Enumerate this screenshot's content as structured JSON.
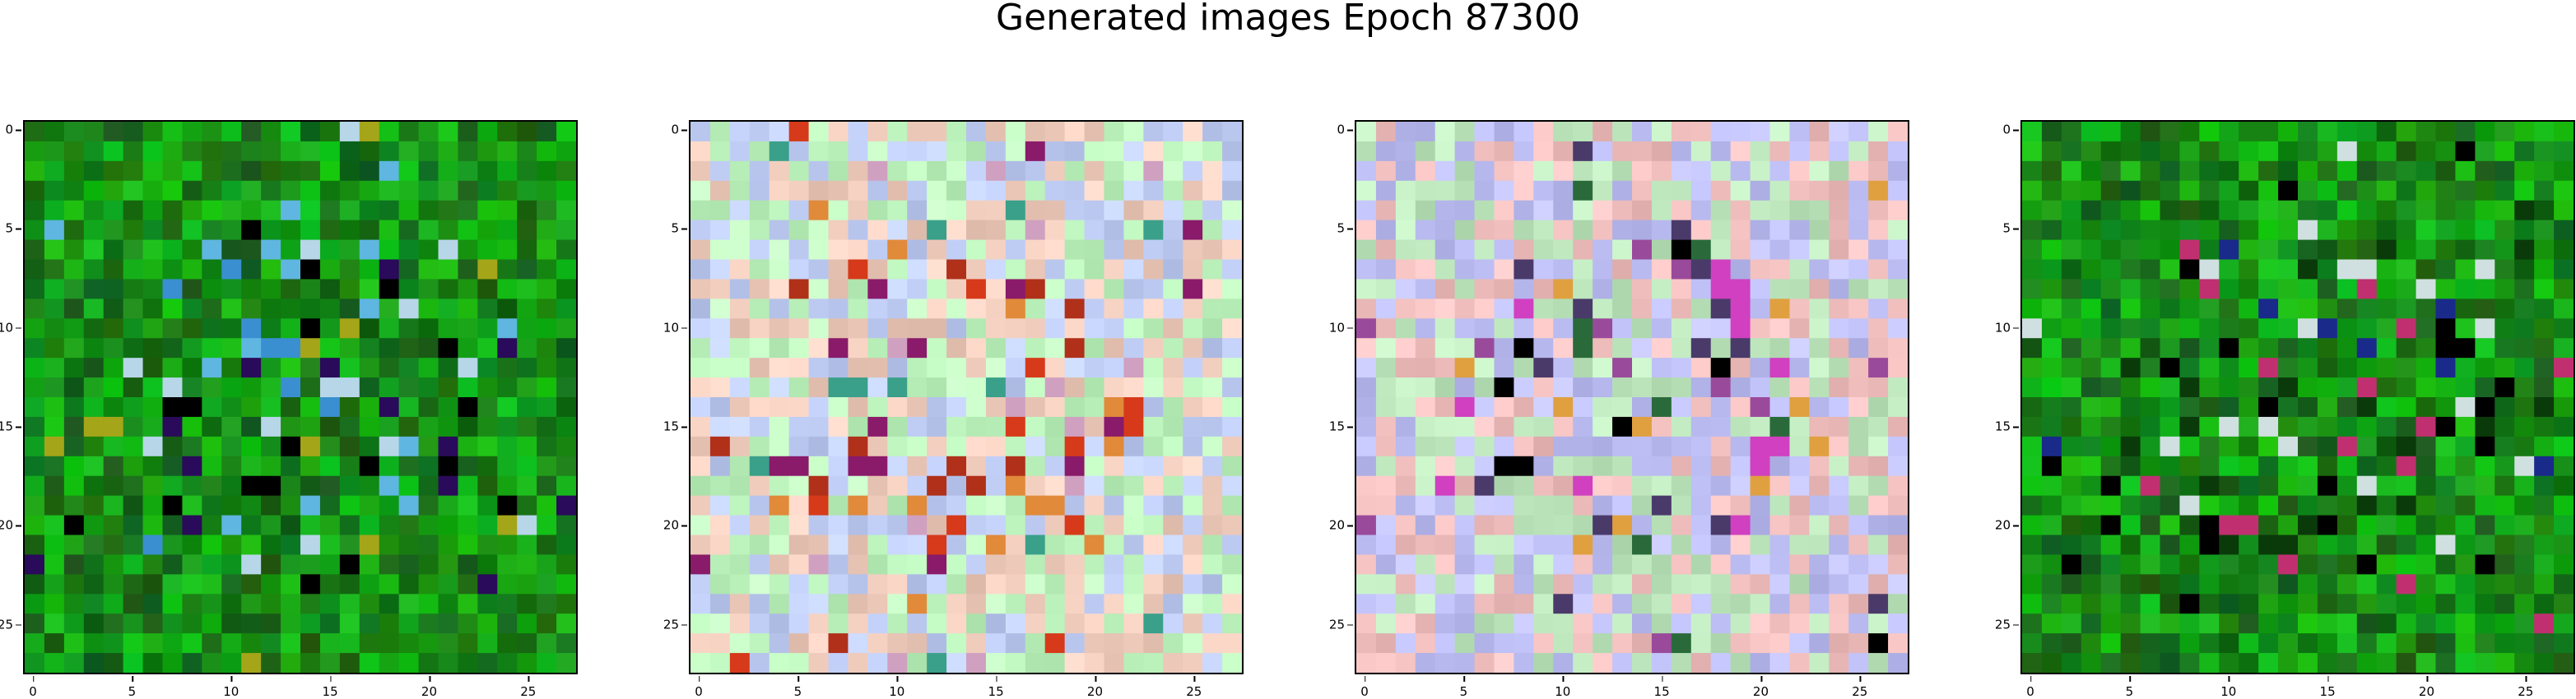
{
  "figure": {
    "title": "Generated images Epoch 87300"
  },
  "axes": {
    "x_tick_labels": [
      "0",
      "5",
      "10",
      "15",
      "20",
      "25"
    ],
    "y_tick_labels": [
      "0",
      "5",
      "10",
      "15",
      "20",
      "25"
    ],
    "pixel_grid": [
      28,
      28
    ]
  },
  "panels": [
    {
      "theme": "green",
      "base_color": "#1f8f1f",
      "highlight_colors": [
        "#000000",
        "#2a0a5a",
        "#5fb6e0",
        "#b7d6e8",
        "#a5a51a",
        "#3a8fd0"
      ]
    },
    {
      "theme": "pastel",
      "base_color": "#c9d2c8",
      "highlight_colors": [
        "#d63a1a",
        "#b0301a",
        "#e08a3a",
        "#8a1a6a",
        "#3aa08a",
        "#d0a0c0"
      ]
    },
    {
      "theme": "pastel-muted",
      "base_color": "#c8c4c8",
      "highlight_colors": [
        "#000000",
        "#4a3a6a",
        "#d040c0",
        "#2a6a3a",
        "#e0a040",
        "#9a4a9a"
      ]
    },
    {
      "theme": "green",
      "base_color": "#1f8f1f",
      "highlight_colors": [
        "#000000",
        "#1a2a8a",
        "#d0e0e0",
        "#c03070",
        "#0a3a0a"
      ]
    }
  ]
}
